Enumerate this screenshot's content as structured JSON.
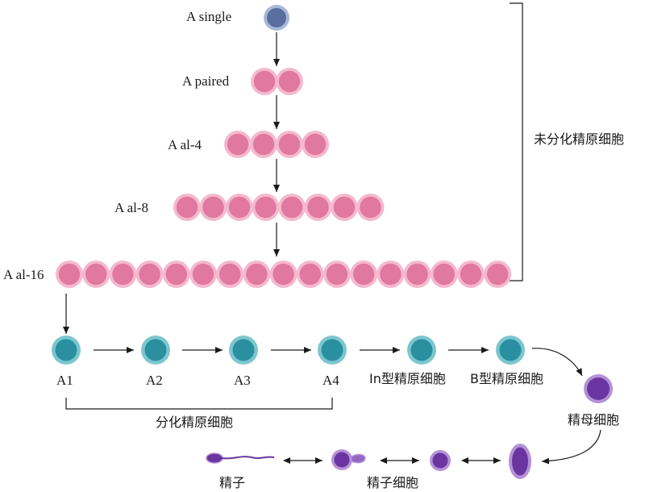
{
  "labels": {
    "a_single": "A single",
    "a_paired": "A paired",
    "a_al4": "A al-4",
    "a_al8": "A al-8",
    "a_al16": "A al-16",
    "undiff": "未分化精原细胞",
    "a1": "A1",
    "a2": "A2",
    "a3": "A3",
    "a4": "A4",
    "in_type": "In型精原细胞",
    "b_type": "B型精原细胞",
    "diff": "分化精原细胞",
    "spermatocyte": "精母细胞",
    "sperm": "精子",
    "spermatid": "精子细胞"
  },
  "colors": {
    "pink_fill": "#e0789f",
    "pink_edge": "#f4b9cc",
    "blue_fill": "#5a6fa0",
    "blue_edge": "#aab8d8",
    "teal_fill": "#2a8f9e",
    "teal_edge": "#7cc6cf",
    "purple_fill": "#6a35a0",
    "purple_edge": "#b591d6",
    "line": "#1a1a1a"
  }
}
